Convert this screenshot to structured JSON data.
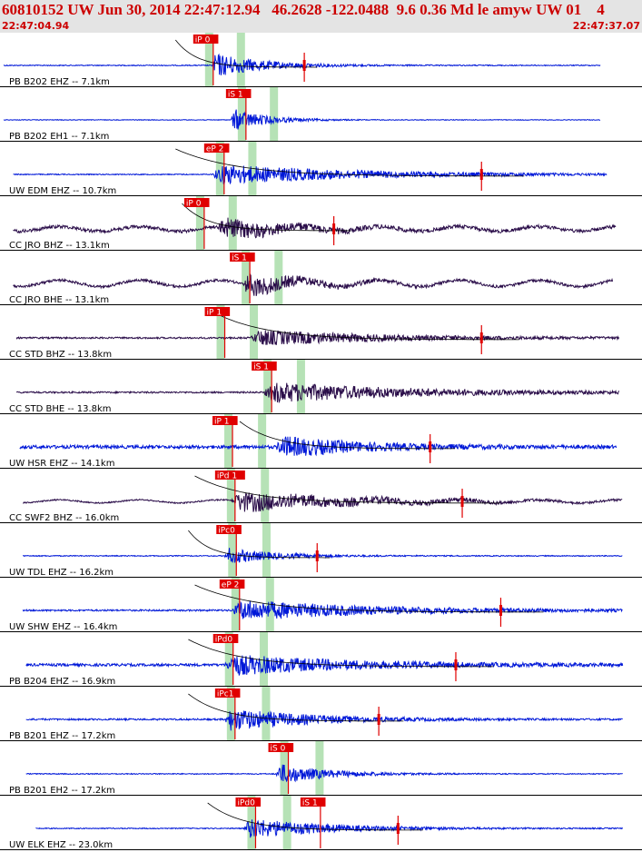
{
  "header": {
    "title": "60810152 UW Jun 30, 2014 22:47:12.94   46.2628 -122.0488  9.6 0.36 Md le amyw UW 01    4",
    "start_time": "22:47:04.94",
    "end_time": "22:47:37.07"
  },
  "colors": {
    "header_bg": "#e4e4e4",
    "header_text": "#cc0000",
    "trace_blue": "#0018d8",
    "trace_purple": "#2b0e4a",
    "pick_red": "#e00000",
    "window_green": "#b6e2b6"
  },
  "traces": [
    {
      "label": "PB B202 EHZ -- 7.1km",
      "color": "blue",
      "picks": [
        {
          "text": "iP 0",
          "t": 0.301
        }
      ],
      "onset": 0.33,
      "amp": 0.55,
      "duration": 0.12,
      "coda": true,
      "end": 0.935,
      "start": 0.0,
      "noise": 0.03,
      "wave": 0
    },
    {
      "label": "PB B202 EH1 -- 7.1km",
      "color": "blue",
      "picks": [
        {
          "text": "iS 1",
          "t": 0.352
        }
      ],
      "onset": 0.36,
      "amp": 0.5,
      "duration": 0.08,
      "coda": false,
      "end": 0.935,
      "start": 0.0,
      "noise": 0.02,
      "wave": 0
    },
    {
      "label": "UW EDM EHZ -- 10.7km",
      "color": "blue",
      "picks": [
        {
          "text": "eP 2",
          "t": 0.318
        }
      ],
      "onset": 0.33,
      "amp": 0.45,
      "duration": 0.35,
      "coda": true,
      "end": 0.945,
      "start": 0.015,
      "noise": 0.03,
      "wave": 0
    },
    {
      "label": "CC JRO BHZ -- 13.1km",
      "color": "purple",
      "picks": [
        {
          "text": "iP 0",
          "t": 0.287
        }
      ],
      "onset": 0.34,
      "amp": 0.45,
      "duration": 0.15,
      "coda": true,
      "end": 0.96,
      "start": 0.015,
      "noise": 0.1,
      "wave": 0.18
    },
    {
      "label": "CC JRO BHE -- 13.1km",
      "color": "purple",
      "picks": [
        {
          "text": "iS 1",
          "t": 0.358
        }
      ],
      "onset": 0.38,
      "amp": 0.5,
      "duration": 0.12,
      "coda": false,
      "end": 0.955,
      "start": 0.015,
      "noise": 0.08,
      "wave": 0.25
    },
    {
      "label": "CC STD BHZ -- 13.8km",
      "color": "purple",
      "picks": [
        {
          "text": "iP 1",
          "t": 0.319
        }
      ],
      "onset": 0.39,
      "amp": 0.35,
      "duration": 0.3,
      "coda": true,
      "end": 0.965,
      "start": 0.02,
      "noise": 0.05,
      "wave": 0
    },
    {
      "label": "CC STD BHE -- 13.8km",
      "color": "purple",
      "picks": [
        {
          "text": "iS 1",
          "t": 0.392
        }
      ],
      "onset": 0.41,
      "amp": 0.45,
      "duration": 0.35,
      "coda": false,
      "end": 0.965,
      "start": 0.02,
      "noise": 0.05,
      "wave": 0
    },
    {
      "label": "UW HSR EHZ -- 14.1km",
      "color": "blue",
      "picks": [
        {
          "text": "iP 1",
          "t": 0.331
        }
      ],
      "onset": 0.43,
      "amp": 0.45,
      "duration": 0.2,
      "coda": true,
      "end": 0.96,
      "start": 0.025,
      "noise": 0.1,
      "wave": 0
    },
    {
      "label": "CC SWF2 BHZ -- 16.0km",
      "color": "purple",
      "picks": [
        {
          "text": "iPd 1",
          "t": 0.335
        }
      ],
      "onset": 0.36,
      "amp": 0.45,
      "duration": 0.3,
      "coda": true,
      "end": 0.97,
      "start": 0.03,
      "noise": 0.04,
      "wave": 0.12
    },
    {
      "label": "UW TDL EHZ -- 16.2km",
      "color": "blue",
      "picks": [
        {
          "text": "iPc0",
          "t": 0.337
        }
      ],
      "onset": 0.35,
      "amp": 0.35,
      "duration": 0.12,
      "coda": true,
      "end": 0.97,
      "start": 0.03,
      "noise": 0.03,
      "wave": 0
    },
    {
      "label": "UW SHW EHZ -- 16.4km",
      "color": "blue",
      "picks": [
        {
          "text": "eP 2",
          "t": 0.342
        }
      ],
      "onset": 0.36,
      "amp": 0.45,
      "duration": 0.35,
      "coda": true,
      "end": 0.97,
      "start": 0.03,
      "noise": 0.05,
      "wave": 0
    },
    {
      "label": "PB B204 EHZ -- 16.9km",
      "color": "blue",
      "picks": [
        {
          "text": "iPd0",
          "t": 0.332
        }
      ],
      "onset": 0.35,
      "amp": 0.45,
      "duration": 0.3,
      "coda": true,
      "end": 0.97,
      "start": 0.035,
      "noise": 0.08,
      "wave": 0
    },
    {
      "label": "PB B201 EHZ -- 17.2km",
      "color": "blue",
      "picks": [
        {
          "text": "iPc1",
          "t": 0.335
        }
      ],
      "onset": 0.35,
      "amp": 0.5,
      "duration": 0.2,
      "coda": true,
      "end": 0.97,
      "start": 0.035,
      "noise": 0.05,
      "wave": 0
    },
    {
      "label": "PB B201 EH2 -- 17.2km",
      "color": "blue",
      "picks": [
        {
          "text": "iS 0",
          "t": 0.418
        }
      ],
      "onset": 0.43,
      "amp": 0.45,
      "duration": 0.12,
      "coda": false,
      "end": 0.97,
      "start": 0.035,
      "noise": 0.03,
      "wave": 0
    },
    {
      "label": "UW ELK EHZ -- 23.0km",
      "color": "blue",
      "picks": [
        {
          "text": "iPd0",
          "t": 0.367
        },
        {
          "text": "iS 1",
          "t": 0.468
        }
      ],
      "onset": 0.38,
      "amp": 0.45,
      "duration": 0.2,
      "coda": true,
      "end": 0.97,
      "start": 0.05,
      "noise": 0.03,
      "wave": 0
    }
  ]
}
